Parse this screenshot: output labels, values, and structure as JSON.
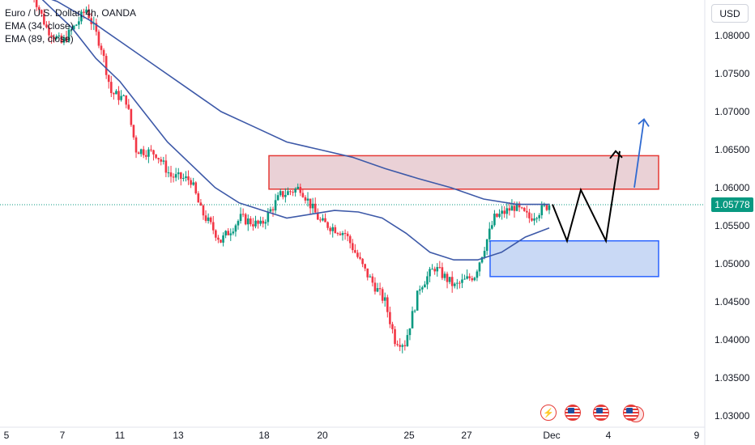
{
  "chart_data": {
    "type": "candlestick",
    "legend": {
      "symbol": "Euro / U.S. Dollar, 4h, OANDA",
      "ema34": "EMA (34, close)",
      "ema89": "EMA (89, close)"
    },
    "currency_label": "USD",
    "last_price_label": "1.05778",
    "last_price": 1.05778,
    "ylim": [
      1.0295,
      1.0865
    ],
    "y_ticks": [
      "1.08000",
      "1.07500",
      "1.07000",
      "1.06500",
      "1.06000",
      "1.05500",
      "1.05000",
      "1.04500",
      "1.04000",
      "1.03500",
      "1.03000"
    ],
    "x_tick_labels": [
      "5",
      "7",
      "11",
      "13",
      "18",
      "20",
      "25",
      "27",
      "Dec",
      "4",
      "9"
    ],
    "colors": {
      "up": "#089981",
      "down": "#f23645",
      "ema": "#3d59a8",
      "resistance": "#e53935",
      "support": "#2962ff",
      "arrow": "#000000",
      "projection": "#2f6ad1"
    },
    "ema_fast": [
      1.087,
      1.084,
      1.081,
      1.077,
      1.074,
      1.07,
      1.066,
      1.063,
      1.06,
      1.058,
      1.057,
      1.056,
      1.0565,
      1.057,
      1.0568,
      1.056,
      1.054,
      1.0515,
      1.0505,
      1.0505,
      1.0515,
      1.0535,
      1.0547
    ],
    "ema_slow": [
      1.086,
      1.0845,
      1.082,
      1.079,
      1.076,
      1.073,
      1.07,
      1.068,
      1.066,
      1.065,
      1.064,
      1.0625,
      1.0612,
      1.06,
      1.0585,
      1.0578,
      1.0578
    ],
    "resistance_zone": {
      "top": 1.0642,
      "bottom": 1.0598,
      "label": ""
    },
    "support_zone": {
      "top": 1.053,
      "bottom": 1.0483,
      "label": ""
    },
    "projection_path": [
      1.0578,
      1.053,
      1.0597,
      1.053,
      1.0648
    ],
    "breakout_arrow": [
      1.06,
      1.069
    ],
    "event_icons": [
      "flash-icon",
      "us-flag-icon",
      "us-flag-icon",
      "us-flag-icon"
    ]
  }
}
